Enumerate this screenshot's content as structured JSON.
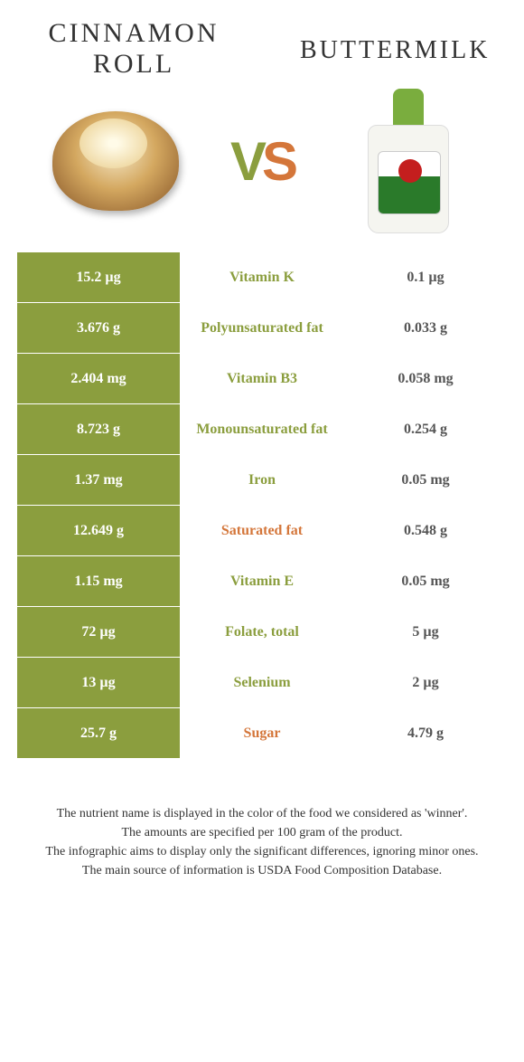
{
  "header": {
    "left_title": "Cinnamon roll",
    "right_title": "Buttermilk",
    "vs_v": "V",
    "vs_s": "S"
  },
  "colors": {
    "green": "#8b9e3e",
    "orange": "#d4763a"
  },
  "rows": [
    {
      "left": "15.2 µg",
      "label": "Vitamin K",
      "right": "0.1 µg",
      "winner": "green"
    },
    {
      "left": "3.676 g",
      "label": "Polyunsaturated fat",
      "right": "0.033 g",
      "winner": "green"
    },
    {
      "left": "2.404 mg",
      "label": "Vitamin B3",
      "right": "0.058 mg",
      "winner": "green"
    },
    {
      "left": "8.723 g",
      "label": "Monounsaturated fat",
      "right": "0.254 g",
      "winner": "green"
    },
    {
      "left": "1.37 mg",
      "label": "Iron",
      "right": "0.05 mg",
      "winner": "green"
    },
    {
      "left": "12.649 g",
      "label": "Saturated fat",
      "right": "0.548 g",
      "winner": "orange"
    },
    {
      "left": "1.15 mg",
      "label": "Vitamin E",
      "right": "0.05 mg",
      "winner": "green"
    },
    {
      "left": "72 µg",
      "label": "Folate, total",
      "right": "5 µg",
      "winner": "green"
    },
    {
      "left": "13 µg",
      "label": "Selenium",
      "right": "2 µg",
      "winner": "green"
    },
    {
      "left": "25.7 g",
      "label": "Sugar",
      "right": "4.79 g",
      "winner": "orange"
    }
  ],
  "footer": {
    "l1": "The nutrient name is displayed in the color of the food we considered as 'winner'.",
    "l2": "The amounts are specified per 100 gram of the product.",
    "l3": "The infographic aims to display only the significant differences, ignoring minor ones.",
    "l4": "The main source of information is USDA Food Composition Database."
  }
}
